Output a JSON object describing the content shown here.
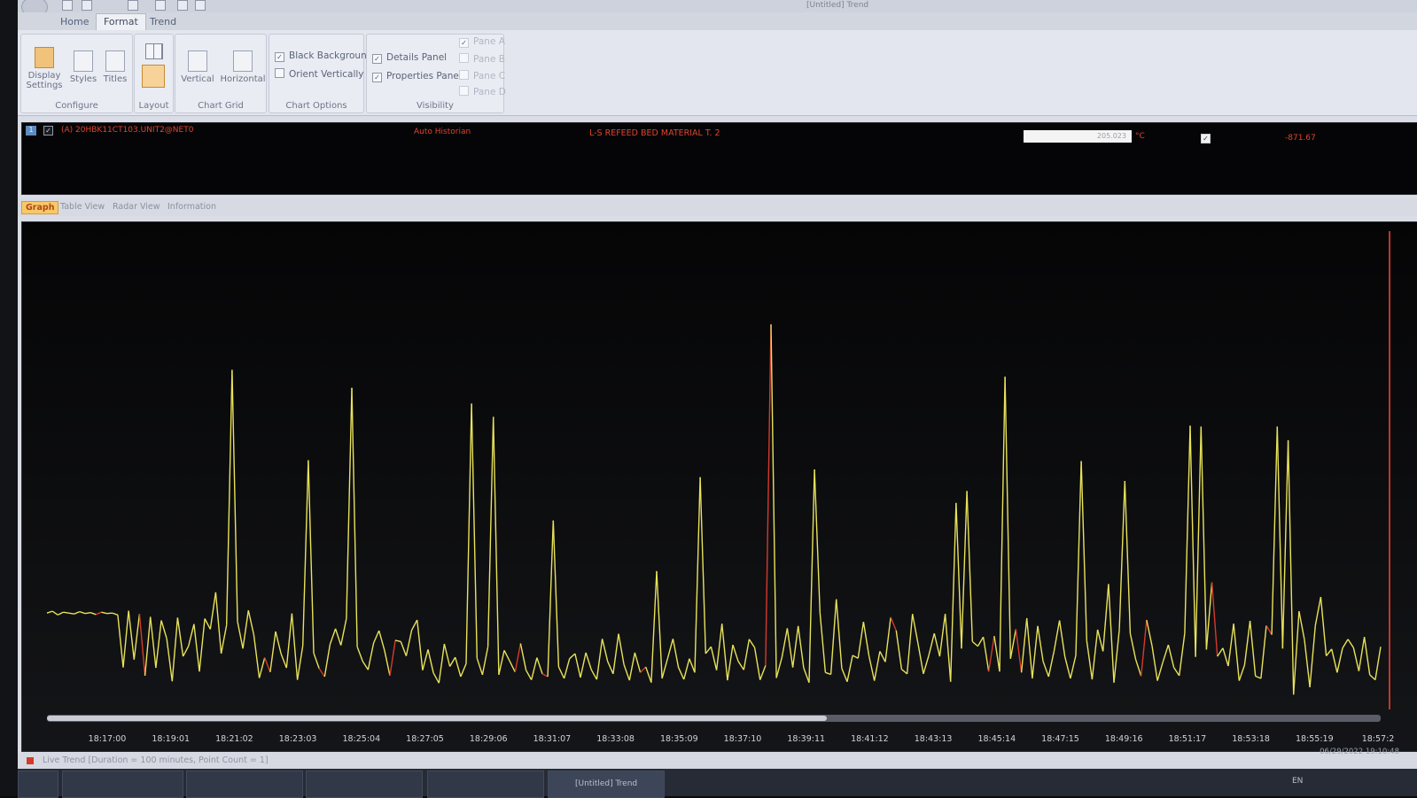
{
  "window": {
    "title": "[Untitled] Trend"
  },
  "ribbon_tabs": [
    "Home",
    "Format",
    "Trend"
  ],
  "active_tab": "Format",
  "groups": {
    "configure": {
      "label": "Configure",
      "buttons": [
        "Display\nSettings",
        "Styles",
        "Titles"
      ]
    },
    "layout": {
      "label": "Layout"
    },
    "chart_grid": {
      "label": "Chart Grid",
      "buttons": [
        "Vertical",
        "Horizontal"
      ]
    },
    "chart_options": {
      "label": "Chart Options",
      "checks": [
        {
          "label": "Black Background",
          "checked": true
        },
        {
          "label": "Orient Vertically",
          "checked": false
        }
      ]
    },
    "visibility": {
      "label": "Visibility",
      "checks": [
        {
          "label": "Details Panel",
          "checked": true
        },
        {
          "label": "Properties Panel",
          "checked": true
        }
      ],
      "panes": [
        {
          "label": "Pane A",
          "checked": true
        },
        {
          "label": "Pane B",
          "checked": false
        },
        {
          "label": "Pane C",
          "checked": false
        },
        {
          "label": "Pane D",
          "checked": false
        }
      ]
    }
  },
  "details": {
    "row_number": "1",
    "tag": "(A) 20HBK11CT103.UNIT2@NET0",
    "source": "Auto Historian",
    "description": "L-S REFEED BED MATERIAL T. 2",
    "value": "205.023",
    "unit": "°C",
    "limit": "-871.67"
  },
  "view_tabs": [
    "Graph",
    "Table View",
    "Radar View",
    "Information"
  ],
  "active_view": "Graph",
  "status": {
    "text": "Live Trend [Duration = 100 minutes, Point Count = 1]",
    "timestamp": "06/29/2022 19:10:48"
  },
  "taskbar": {
    "trend_window": "[Untitled] Trend",
    "lang": "EN"
  },
  "colors": {
    "trace": "#e8e25a",
    "trace_alt": "#d43a2c",
    "background": "#0f1012"
  },
  "chart_data": {
    "type": "line",
    "title": "",
    "xlabel": "",
    "ylabel": "",
    "x_ticks": [
      "18:17:00",
      "18:19:01",
      "18:21:02",
      "18:23:03",
      "18:25:04",
      "18:27:05",
      "18:29:06",
      "18:31:07",
      "18:33:08",
      "18:35:09",
      "18:37:10",
      "18:39:11",
      "18:41:12",
      "18:43:13",
      "18:45:14",
      "18:47:15",
      "18:49:16",
      "18:51:17",
      "18:53:18",
      "18:55:19",
      "18:57:2"
    ],
    "ylim": [
      0,
      100
    ],
    "series": [
      {
        "values": [
          19,
          19.4,
          18.6,
          19.2,
          19,
          18.8,
          19.3,
          18.9,
          19.1,
          18.7,
          19.2,
          18.9,
          19,
          18.6,
          7.2,
          19.5,
          8.9,
          18.8,
          5.4,
          18.2,
          7.1,
          17.4,
          13.5,
          4.2,
          18,
          9.6,
          11.8,
          16.6,
          6.3,
          17.8,
          15.5,
          23.5,
          10.2,
          16.4,
          71.8,
          17.2,
          11.3,
          19.6,
          14.3,
          4.9,
          9.3,
          6.2,
          15,
          10.2,
          7.1,
          18.9,
          4.5,
          11.9,
          52.2,
          10.3,
          7,
          5.2,
          12.2,
          15.6,
          12,
          17.8,
          67.9,
          11.7,
          8.5,
          6.7,
          12.5,
          15.2,
          10.9,
          5.4,
          13.1,
          12.8,
          9.7,
          15.3,
          17.5,
          6.6,
          11.1,
          6,
          3.8,
          12.3,
          7.4,
          9.4,
          5.2,
          8,
          64.5,
          9.2,
          5.6,
          11.7,
          61.6,
          5.6,
          10.9,
          8.6,
          6.2,
          12.4,
          6.6,
          4.5,
          9.3,
          5.8,
          5.2,
          39.1,
          7.3,
          4.8,
          9.1,
          10.2,
          5,
          10.4,
          6.7,
          4.6,
          13.4,
          8.5,
          5.8,
          14.5,
          7.8,
          4.4,
          10.4,
          6.1,
          7.3,
          3.9,
          28.1,
          4.8,
          9.1,
          13.4,
          7.2,
          4.6,
          9.1,
          6.1,
          48.5,
          10.2,
          11.7,
          6.6,
          16.7,
          4.4,
          12.1,
          8.5,
          6.7,
          13.3,
          11.5,
          4.5,
          7.6,
          81.7,
          4.9,
          9.3,
          15.7,
          7.2,
          16.2,
          7.1,
          3.9,
          50.2,
          19.1,
          6.1,
          5.7,
          22,
          7,
          4.1,
          9.8,
          9.2,
          17.1,
          9.7,
          4.3,
          10.7,
          8.4,
          18.1,
          15.2,
          6.8,
          5.8,
          18.8,
          12.4,
          5.8,
          9.8,
          14.6,
          9.6,
          18.8,
          4.1,
          42.9,
          11.3,
          45.5,
          12.8,
          11.8,
          13.8,
          6.3,
          14,
          6.3,
          70.3,
          9.1,
          15.5,
          6.1,
          17.9,
          4.8,
          16.2,
          8.5,
          5.2,
          10.7,
          17.4,
          9.5,
          4.8,
          9.8,
          52,
          13,
          4.6,
          15.4,
          10.7,
          25.3,
          3.9,
          15.4,
          47.7,
          14.6,
          8.9,
          5.3,
          17.5,
          11.9,
          4.3,
          8.4,
          12.1,
          7.2,
          5.4,
          14.6,
          59.7,
          9.5,
          59.5,
          11.1,
          25.7,
          9.6,
          11.4,
          7.5,
          16.7,
          4.3,
          7.7,
          17.3,
          5.3,
          4.8,
          16.3,
          14.3,
          59.5,
          11.3,
          56.5,
          1.3,
          19.4,
          13.2,
          2.9,
          16.3,
          22.5,
          9.7,
          11.2,
          6.1,
          11.4,
          13.3,
          11.5,
          6.4,
          13.8,
          5.6,
          4.5,
          11.7
        ]
      }
    ]
  }
}
